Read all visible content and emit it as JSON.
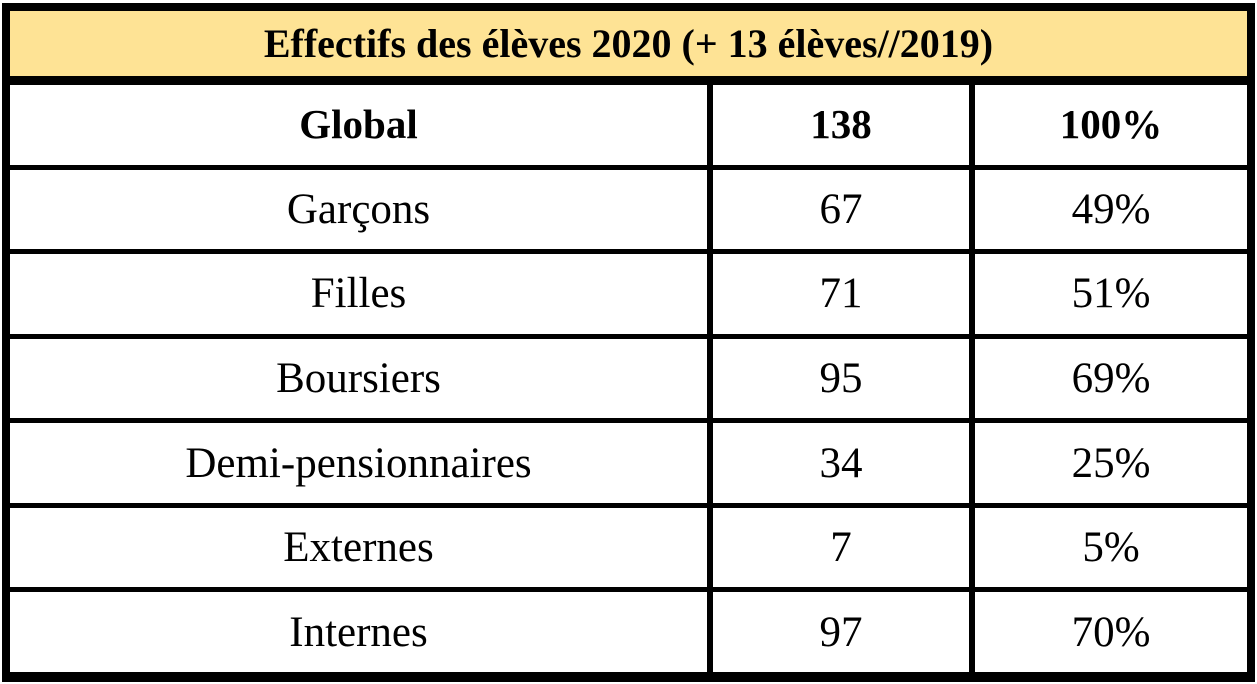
{
  "colors": {
    "header_bg": "#FEE395",
    "border": "#000000",
    "text": "#000000"
  },
  "table": {
    "title": "Effectifs des élèves 2020 (+ 13 élèves//2019)",
    "rows": [
      {
        "label": "Global",
        "count": "138",
        "percent": "100%"
      },
      {
        "label": "Garçons",
        "count": "67",
        "percent": "49%"
      },
      {
        "label": "Filles",
        "count": "71",
        "percent": "51%"
      },
      {
        "label": "Boursiers",
        "count": "95",
        "percent": "69%"
      },
      {
        "label": "Demi-pensionnaires",
        "count": "34",
        "percent": "25%"
      },
      {
        "label": "Externes",
        "count": "7",
        "percent": "5%"
      },
      {
        "label": "Internes",
        "count": "97",
        "percent": "70%"
      }
    ]
  }
}
